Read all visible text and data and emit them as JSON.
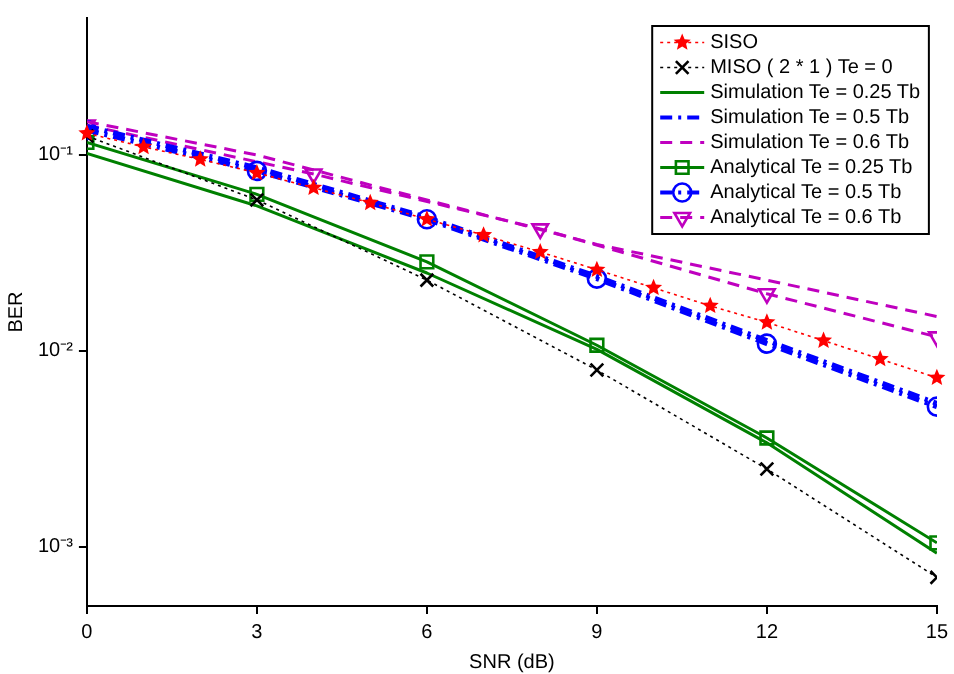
{
  "chart_data": {
    "type": "line",
    "xlabel": "SNR (dB)",
    "ylabel": "BER",
    "log": "y",
    "xlim": [
      0,
      15
    ],
    "xticks": [
      0,
      3,
      6,
      9,
      12,
      15
    ],
    "ylim": [
      0.0005,
      0.5
    ],
    "yticks": [
      {
        "value": 0.001,
        "label": "10⁻³"
      },
      {
        "value": 0.01,
        "label": "10⁻²"
      },
      {
        "value": 0.1,
        "label": "10⁻¹"
      }
    ],
    "grid": false,
    "legend": "top right",
    "series": [
      {
        "name": "SISO",
        "color": "#ff0000",
        "marker": "star",
        "line_style": "dotted",
        "x": [
          0,
          1,
          2,
          3,
          4,
          5,
          6,
          7,
          8,
          9,
          10,
          11,
          12,
          13,
          14,
          15
        ],
        "values": [
          0.129,
          0.11,
          0.095,
          0.081,
          0.068,
          0.057,
          0.047,
          0.039,
          0.032,
          0.026,
          0.021,
          0.017,
          0.014,
          0.0113,
          0.0091,
          0.0073
        ]
      },
      {
        "name": "MISO ( 2 * 1 ) Te = 0",
        "color": "#000000",
        "marker": "cross",
        "line_style": "dotted",
        "x": [
          0,
          3,
          6,
          9,
          12,
          15
        ],
        "values": [
          0.125,
          0.059,
          0.023,
          0.008,
          0.0025,
          0.0007
        ]
      },
      {
        "name": "Simulation Te = 0.25 Tb",
        "color": "#008000",
        "marker": "none",
        "line_style": "solid",
        "x": [
          0,
          3,
          6,
          9,
          12,
          15
        ],
        "values": [
          0.102,
          0.055,
          0.025,
          0.0102,
          0.0034,
          0.00093
        ]
      },
      {
        "name": "Simulation Te = 0.5 Tb",
        "color": "#0000ff",
        "marker": "none",
        "line_style": "dashdot",
        "x": [
          0,
          3,
          6,
          9,
          12,
          15
        ],
        "values": [
          0.14,
          0.086,
          0.048,
          0.024,
          0.0113,
          0.0054
        ]
      },
      {
        "name": "Simulation Te = 0.6 Tb",
        "color": "#bf00bf",
        "marker": "none",
        "line_style": "dashed",
        "x": [
          0,
          3,
          6,
          9,
          12,
          15
        ],
        "values": [
          0.148,
          0.1,
          0.059,
          0.035,
          0.023,
          0.015
        ]
      },
      {
        "name": "Analytical Te = 0.25 Tb",
        "color": "#008000",
        "marker": "square",
        "line_style": "solid",
        "x": [
          0,
          3,
          6,
          9,
          12,
          15
        ],
        "values": [
          0.116,
          0.063,
          0.0285,
          0.0107,
          0.0036,
          0.00105
        ]
      },
      {
        "name": "Analytical Te = 0.5 Tb",
        "color": "#0000ff",
        "marker": "circle",
        "line_style": "dashdot",
        "x": [
          0,
          3,
          6,
          9,
          12,
          15
        ],
        "values": [
          0.134,
          0.083,
          0.047,
          0.0234,
          0.0109,
          0.0052
        ]
      },
      {
        "name": "Analytical Te = 0.6 Tb",
        "color": "#bf00bf",
        "marker": "triangle",
        "line_style": "dashed",
        "x": [
          0,
          4,
          8,
          12,
          15
        ],
        "values": [
          0.142,
          0.08,
          0.042,
          0.0196,
          0.0118
        ]
      }
    ]
  }
}
